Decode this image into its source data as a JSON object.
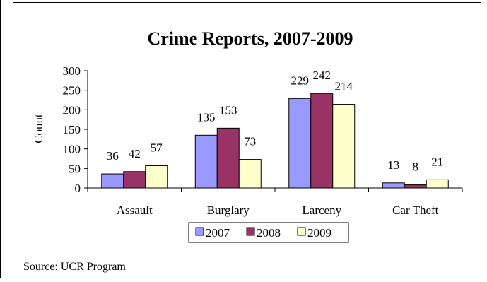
{
  "chart_data": {
    "type": "bar",
    "title": "Crime Reports, 2007-2009",
    "xlabel": "",
    "ylabel": "Count",
    "ylim": [
      0,
      300
    ],
    "yticks": [
      0,
      50,
      100,
      150,
      200,
      250,
      300
    ],
    "categories": [
      "Assault",
      "Burglary",
      "Larceny",
      "Car Theft"
    ],
    "series": [
      {
        "name": "2007",
        "values": [
          36,
          135,
          229,
          13
        ],
        "color": "#9999ff"
      },
      {
        "name": "2008",
        "values": [
          42,
          153,
          242,
          8
        ],
        "color": "#993366"
      },
      {
        "name": "2009",
        "values": [
          57,
          73,
          214,
          21
        ],
        "color": "#ffffcc"
      }
    ],
    "legend": "bottom",
    "grid": false
  },
  "source_note": "Source: UCR Program"
}
